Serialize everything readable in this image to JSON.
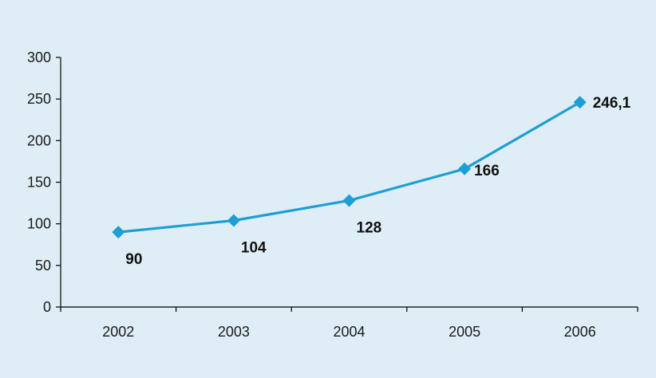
{
  "chart_data": {
    "type": "line",
    "title": "",
    "xlabel": "",
    "ylabel": "",
    "categories": [
      "2002",
      "2003",
      "2004",
      "2005",
      "2006"
    ],
    "series": [
      {
        "values": [
          90,
          104,
          128,
          166,
          246.1
        ]
      }
    ],
    "data_labels": [
      "90",
      "104",
      "128",
      "166",
      "246,1"
    ],
    "ylim": [
      0,
      300
    ],
    "yticks": [
      "0",
      "50",
      "100",
      "150",
      "200",
      "250",
      "300"
    ],
    "grid": false,
    "legend": "none",
    "marker": "diamond",
    "colors": {
      "line": "#1e9fd4",
      "background": "#dfeef6",
      "axis": "#000000"
    }
  }
}
